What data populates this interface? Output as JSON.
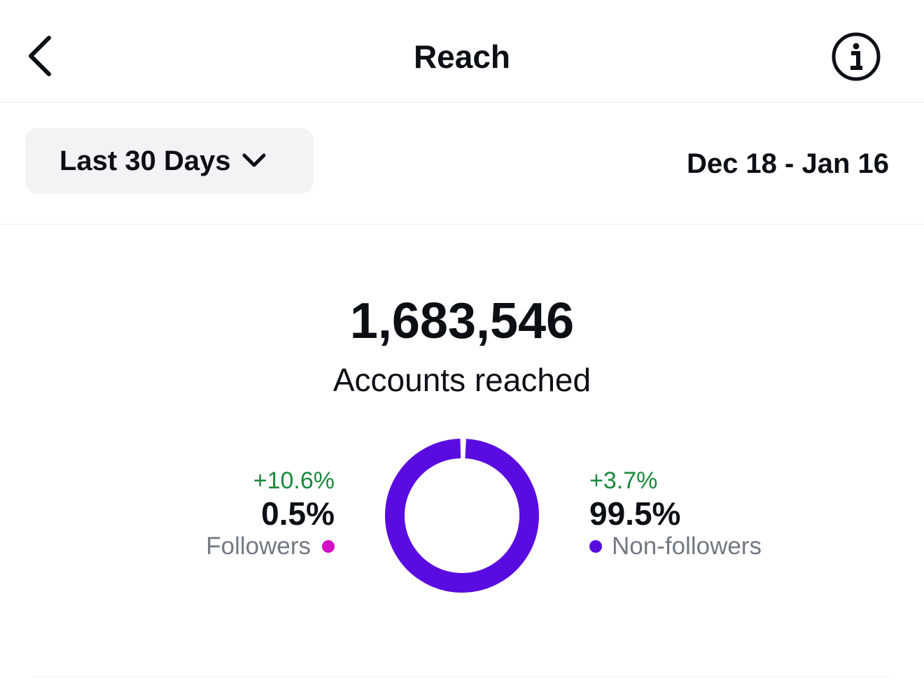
{
  "header": {
    "title": "Reach",
    "back_icon": "chevron-left-icon",
    "info_icon": "info-icon"
  },
  "filter": {
    "range_label": "Last 30 Days",
    "date_range": "Dec 18 - Jan 16"
  },
  "summary": {
    "total": "1,683,546",
    "total_label": "Accounts reached"
  },
  "chart_data": {
    "type": "pie",
    "categories": [
      "Followers",
      "Non-followers"
    ],
    "values": [
      0.5,
      99.5
    ],
    "colors": [
      "#d40fc8",
      "#5a0ce0"
    ],
    "changes": [
      "+10.6%",
      "+3.7%"
    ]
  },
  "followers": {
    "change": "+10.6%",
    "percent": "0.5%",
    "label": "Followers",
    "color": "#d40fc8"
  },
  "non_followers": {
    "change": "+3.7%",
    "percent": "99.5%",
    "label": "Non-followers",
    "color": "#5a0ce0"
  }
}
